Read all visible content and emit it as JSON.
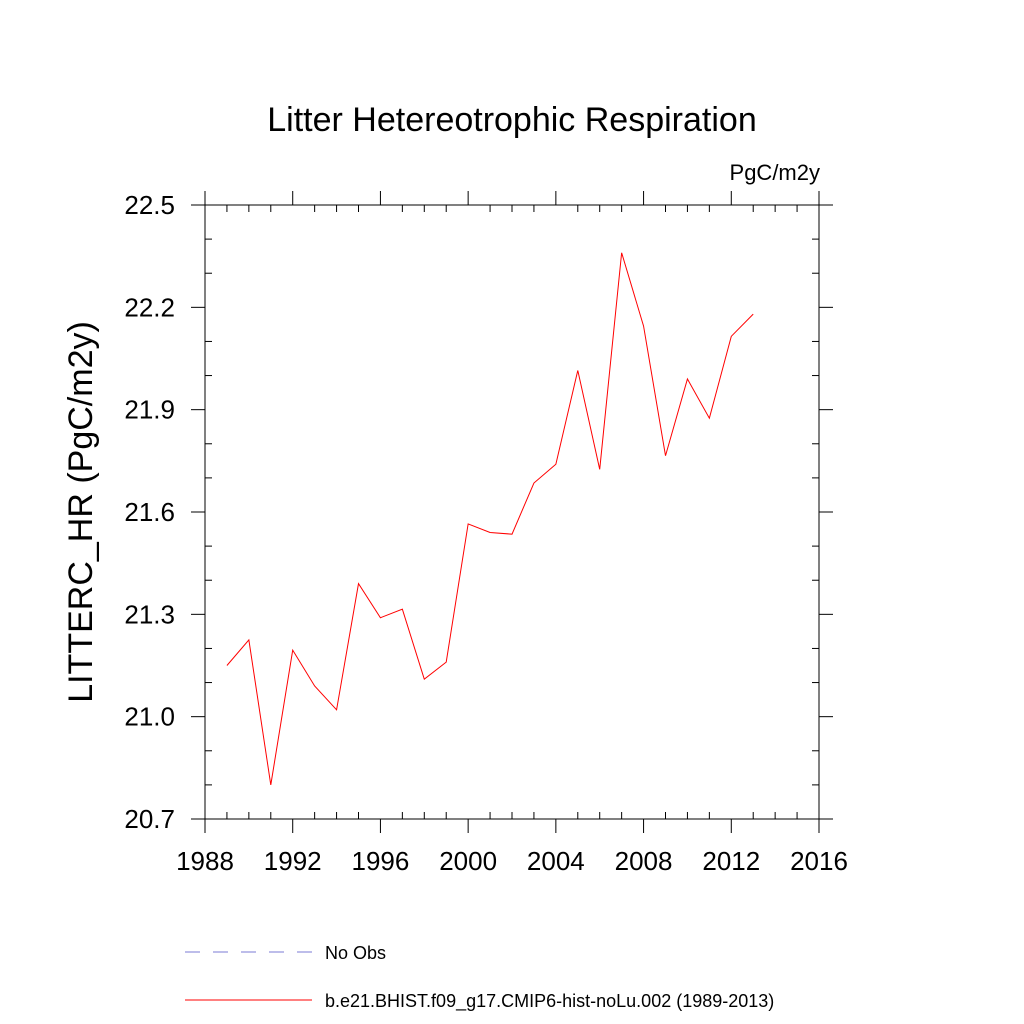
{
  "chart_data": {
    "type": "line",
    "title": "Litter Hetereotrophic Respiration",
    "units_label": "PgC/m2y",
    "xlabel": "",
    "ylabel": "LITTERC_HR  (PgC/m2y)",
    "xlim": [
      1988,
      2016
    ],
    "ylim": [
      20.7,
      22.5
    ],
    "x_ticks": [
      1988,
      1992,
      1996,
      2000,
      2004,
      2008,
      2012,
      2016
    ],
    "x_tick_labels": [
      "1988",
      "1992",
      "1996",
      "2000",
      "2004",
      "2008",
      "2012",
      "2016"
    ],
    "y_ticks": [
      20.7,
      21.0,
      21.3,
      21.6,
      21.9,
      22.2,
      22.5
    ],
    "y_tick_labels": [
      "20.7",
      "21.0",
      "21.3",
      "21.6",
      "21.9",
      "22.2",
      "22.5"
    ],
    "x_minor_step": 1,
    "y_minor_step": 0.1,
    "grid": false,
    "legend_position": "bottom",
    "series": [
      {
        "name": "b.e21.BHIST.f09_g17.CMIP6-hist-noLu.002 (1989-2013)",
        "color": "#ff0000",
        "dash": "solid",
        "x": [
          1989,
          1990,
          1991,
          1992,
          1993,
          1994,
          1995,
          1996,
          1997,
          1998,
          1999,
          2000,
          2001,
          2002,
          2003,
          2004,
          2005,
          2006,
          2007,
          2008,
          2009,
          2010,
          2011,
          2012,
          2013
        ],
        "y": [
          21.15,
          21.225,
          20.8,
          21.195,
          21.09,
          21.02,
          21.39,
          21.29,
          21.315,
          21.11,
          21.16,
          21.565,
          21.54,
          21.535,
          21.685,
          21.74,
          22.015,
          21.725,
          22.36,
          22.145,
          21.765,
          21.99,
          21.875,
          22.115,
          22.18
        ]
      }
    ],
    "legend": [
      {
        "label": "No Obs",
        "color": "#7b7bd6",
        "dash": "dashed"
      },
      {
        "label": "b.e21.BHIST.f09_g17.CMIP6-hist-noLu.002 (1989-2013)",
        "color": "#ff0000",
        "dash": "solid"
      }
    ]
  }
}
